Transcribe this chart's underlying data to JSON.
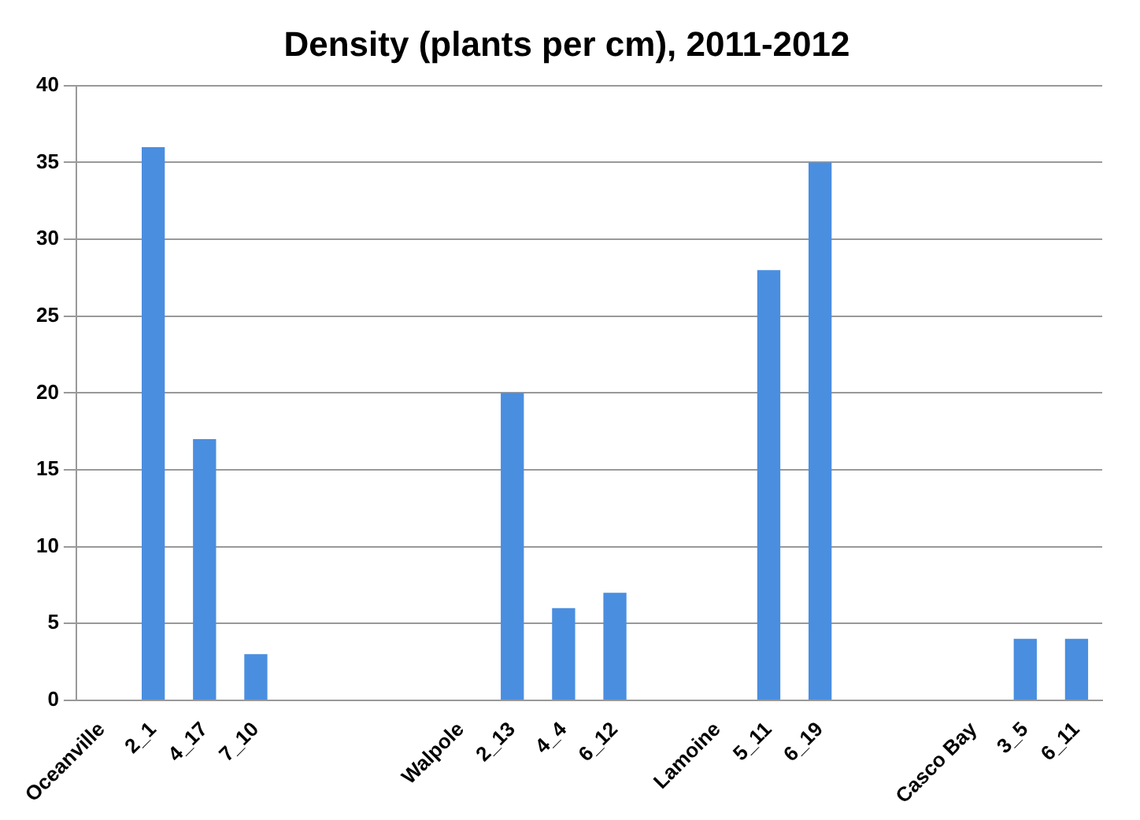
{
  "chart_data": {
    "type": "bar",
    "title": "Density (plants per cm), 2011-2012",
    "categories": [
      "Oceanville",
      "2_1",
      "4_17",
      "7_10",
      null,
      null,
      null,
      "Walpole",
      "2_13",
      "4_4",
      "6_12",
      null,
      "Lamoine",
      "5_11",
      "6_19",
      null,
      null,
      "Casco Bay",
      "3_5",
      "6_11"
    ],
    "values": [
      null,
      36,
      17,
      3,
      null,
      null,
      null,
      null,
      20,
      6,
      7,
      null,
      null,
      28,
      35,
      null,
      null,
      null,
      4,
      4
    ],
    "color": "#4a8ee0",
    "ylim": [
      0,
      40
    ],
    "yticks": [
      0,
      5,
      10,
      15,
      20,
      25,
      30,
      35,
      40
    ],
    "grid": "y"
  }
}
